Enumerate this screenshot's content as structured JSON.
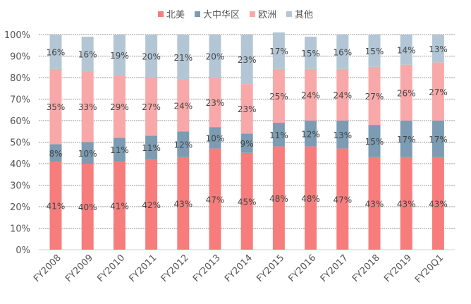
{
  "chart_data": {
    "type": "bar",
    "stacked": true,
    "percent": true,
    "title": "",
    "xlabel": "",
    "ylabel": "",
    "ylim": [
      0,
      100
    ],
    "yticks": [
      "0%",
      "10%",
      "20%",
      "30%",
      "40%",
      "50%",
      "60%",
      "70%",
      "80%",
      "90%",
      "100%"
    ],
    "grid": true,
    "legend_position": "top",
    "categories": [
      "FY2008",
      "FY2009",
      "FY2010",
      "FY2011",
      "FY2012",
      "FY2013",
      "FY2014",
      "FY2015",
      "FY2016",
      "FY2017",
      "FY2018",
      "FY2019",
      "FY20Q1"
    ],
    "series": [
      {
        "name": "北美",
        "color": "#f77d7d",
        "values": [
          41,
          40,
          41,
          42,
          43,
          47,
          45,
          48,
          48,
          47,
          43,
          43,
          43
        ]
      },
      {
        "name": "大中华区",
        "color": "#7b9cb2",
        "values": [
          8,
          10,
          11,
          11,
          12,
          10,
          9,
          11,
          12,
          13,
          15,
          17,
          17
        ]
      },
      {
        "name": "欧洲",
        "color": "#f9a8a9",
        "values": [
          35,
          33,
          29,
          27,
          24,
          23,
          23,
          25,
          24,
          24,
          27,
          26,
          27
        ]
      },
      {
        "name": "其他",
        "color": "#b3c6d5",
        "values": [
          16,
          16,
          19,
          20,
          21,
          20,
          23,
          17,
          15,
          16,
          15,
          14,
          13
        ]
      }
    ]
  }
}
